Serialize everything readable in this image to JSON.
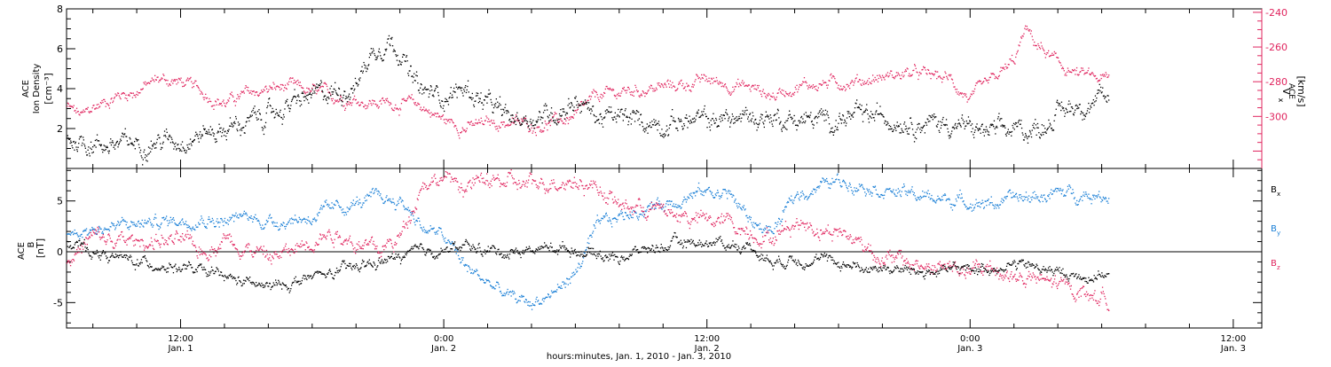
{
  "colors": {
    "black": "#000000",
    "density": "#000000",
    "vx": "#e0245e",
    "bx": "#000000",
    "by": "#1a7fd6",
    "bz": "#e0245e"
  },
  "xaxis": {
    "ticks": [
      {
        "t": 12,
        "l1": "12:00",
        "l2": "Jan. 1"
      },
      {
        "t": 24,
        "l1": "0:00",
        "l2": "Jan. 2"
      },
      {
        "t": 36,
        "l1": "12:00",
        "l2": "Jan. 2"
      },
      {
        "t": 48,
        "l1": "0:00",
        "l2": "Jan. 3"
      },
      {
        "t": 60,
        "l1": "12:00",
        "l2": "Jan. 3"
      }
    ],
    "title": "hours:minutes, Jan.  1, 2010 - Jan.  3, 2010",
    "range_hours": [
      6.8,
      61.3
    ],
    "data_end_hours": 54.3
  },
  "chart_data": [
    {
      "type": "scatter",
      "panel": "plasma",
      "ylabel_left": [
        "ACE",
        "Ion Density",
        "[cm⁻³]"
      ],
      "ylabel_right": "V",
      "ylabel_right_sub": "x",
      "ylabel_right_sup": "ACE",
      "ylabel_right_unit": "[km/s]",
      "ylim_left": [
        0,
        8
      ],
      "yticks_left": [
        "2",
        "4",
        "6",
        "8"
      ],
      "ylim_right": [
        -330,
        -238
      ],
      "yticks_right": [
        "-240",
        "-260",
        "-280",
        "-300"
      ],
      "series": [
        {
          "axis": "left",
          "x": [
            6.8,
            8,
            9,
            10,
            11,
            12,
            13,
            14,
            15,
            16,
            17,
            18,
            19,
            20,
            20.5,
            21,
            21.5,
            22,
            22.5,
            23,
            24,
            25,
            26,
            27,
            28,
            29,
            30,
            31,
            32,
            33,
            34,
            35,
            36,
            37,
            38,
            39,
            40,
            41,
            42,
            43,
            44,
            45,
            46,
            47,
            48,
            49,
            50,
            51,
            52,
            53,
            54.3
          ],
          "values": [
            1.5,
            1.3,
            1.2,
            1.3,
            1.4,
            1.5,
            1.8,
            2.0,
            2.3,
            2.7,
            3.2,
            3.6,
            3.9,
            4.2,
            5.5,
            6.2,
            6.5,
            6.0,
            4.5,
            3.8,
            3.7,
            4.0,
            3.2,
            2.5,
            2.6,
            2.8,
            3.5,
            2.6,
            2.5,
            2.4,
            2.3,
            2.4,
            2.4,
            2.5,
            2.6,
            2.6,
            2.5,
            2.4,
            2.5,
            2.6,
            2.6,
            2.5,
            2.3,
            2.3,
            2.0,
            1.8,
            1.9,
            2.0,
            2.8,
            3.3,
            3.4
          ]
        },
        {
          "axis": "right",
          "x": [
            6.8,
            7.5,
            8,
            9,
            10,
            11,
            12,
            13,
            14,
            15,
            16,
            17,
            18,
            19,
            20,
            21,
            22,
            23,
            24,
            25,
            26,
            27,
            28,
            29,
            30,
            31,
            32,
            33,
            34,
            35,
            36,
            37,
            38,
            39,
            40,
            41,
            42,
            43,
            44,
            45,
            46,
            47,
            48,
            49,
            50,
            50.5,
            51,
            52,
            53,
            54.3
          ],
          "values": [
            -294,
            -300,
            -295,
            -288,
            -285,
            -278,
            -280,
            -286,
            -292,
            -287,
            -284,
            -283,
            -286,
            -288,
            -290,
            -292,
            -292,
            -294,
            -302,
            -306,
            -304,
            -303,
            -305,
            -303,
            -300,
            -288,
            -286,
            -284,
            -283,
            -281,
            -279,
            -281,
            -283,
            -288,
            -282,
            -281,
            -280,
            -279,
            -277,
            -275,
            -276,
            -278,
            -290,
            -280,
            -268,
            -250,
            -258,
            -270,
            -276,
            -279
          ]
        }
      ]
    },
    {
      "type": "scatter",
      "panel": "magnetic",
      "ylabel_left": [
        "ACE",
        "B",
        "[nT]"
      ],
      "ylim": [
        -7.5,
        8.2
      ],
      "yticks": [
        "5",
        "0",
        "-5"
      ],
      "legend": [
        "B",
        "B",
        "B"
      ],
      "legend_subs": [
        "x",
        "y",
        "z"
      ],
      "series": [
        {
          "name": "B",
          "sub": "x",
          "x": [
            6.8,
            8,
            9,
            10,
            11,
            12,
            13,
            14,
            15,
            16,
            17,
            18,
            19,
            20,
            21,
            22,
            23,
            24,
            25,
            26,
            27,
            28,
            29,
            30,
            31,
            32,
            33,
            34,
            35,
            36,
            37,
            38,
            39,
            40,
            41,
            42,
            43,
            44,
            45,
            46,
            47,
            48,
            49,
            50,
            51,
            52,
            53,
            54.3
          ],
          "values": [
            1.0,
            0.0,
            -0.5,
            -1.0,
            -1.2,
            -1.5,
            -2.0,
            -2.5,
            -3.0,
            -3.5,
            -3.0,
            -2.5,
            -2.0,
            -1.5,
            -1.0,
            -0.5,
            0.0,
            0.3,
            0.5,
            0.2,
            0.0,
            0.3,
            0.5,
            0.3,
            -0.2,
            -0.5,
            0.2,
            0.6,
            1.0,
            1.0,
            0.8,
            0.5,
            -1.0,
            -0.5,
            -0.8,
            -1.0,
            -1.5,
            -1.5,
            -1.8,
            -2.0,
            -1.8,
            -1.6,
            -1.5,
            -1.2,
            -1.5,
            -2.0,
            -2.5,
            -2.0
          ]
        },
        {
          "name": "B",
          "sub": "y",
          "x": [
            6.8,
            8,
            9,
            10,
            11,
            12,
            13,
            14,
            15,
            16,
            17,
            18,
            19,
            20,
            21,
            22,
            22.5,
            23,
            24,
            25,
            26,
            27,
            28,
            29,
            30,
            31,
            32,
            33,
            34,
            35,
            36,
            37,
            38,
            39,
            40,
            41,
            42,
            43,
            44,
            45,
            46,
            47,
            48,
            49,
            50,
            51,
            52,
            53,
            54.3
          ],
          "values": [
            2.0,
            2.3,
            2.5,
            2.8,
            3.0,
            3.2,
            3.4,
            3.0,
            3.5,
            3.0,
            3.2,
            3.5,
            4.2,
            4.8,
            5.3,
            5.0,
            4.0,
            2.5,
            1.5,
            -1.5,
            -3.0,
            -4.5,
            -5.0,
            -4.0,
            -2.0,
            2.5,
            3.5,
            4.2,
            4.8,
            5.5,
            6.0,
            5.8,
            3.0,
            2.0,
            5.5,
            6.5,
            7.0,
            6.8,
            6.2,
            5.8,
            5.4,
            5.2,
            5.0,
            4.8,
            5.2,
            5.5,
            5.8,
            5.8,
            5.6
          ]
        },
        {
          "name": "B",
          "sub": "z",
          "x": [
            6.8,
            8,
            9,
            10,
            11,
            12,
            13,
            14,
            15,
            16,
            17,
            18,
            19,
            20,
            21,
            22,
            23,
            24,
            25,
            26,
            27,
            28,
            29,
            30,
            31,
            32,
            33,
            34,
            35,
            36,
            37,
            38,
            39,
            40,
            41,
            42,
            43,
            44,
            45,
            46,
            47,
            48,
            49,
            50,
            51,
            52,
            53,
            54.3
          ],
          "values": [
            -1.0,
            1.5,
            1.0,
            1.0,
            1.2,
            1.0,
            0.0,
            1.5,
            0.5,
            -0.5,
            0.0,
            1.5,
            2.0,
            1.0,
            0.0,
            1.5,
            7.0,
            7.3,
            6.5,
            7.0,
            6.8,
            6.5,
            7.2,
            7.0,
            6.5,
            4.5,
            4.5,
            4.0,
            3.5,
            3.0,
            3.0,
            2.0,
            1.5,
            3.0,
            2.5,
            2.0,
            1.0,
            -0.5,
            -1.0,
            -1.5,
            -1.5,
            -2.0,
            -1.5,
            -2.5,
            -2.8,
            -3.2,
            -3.8,
            -4.8
          ]
        }
      ]
    }
  ]
}
